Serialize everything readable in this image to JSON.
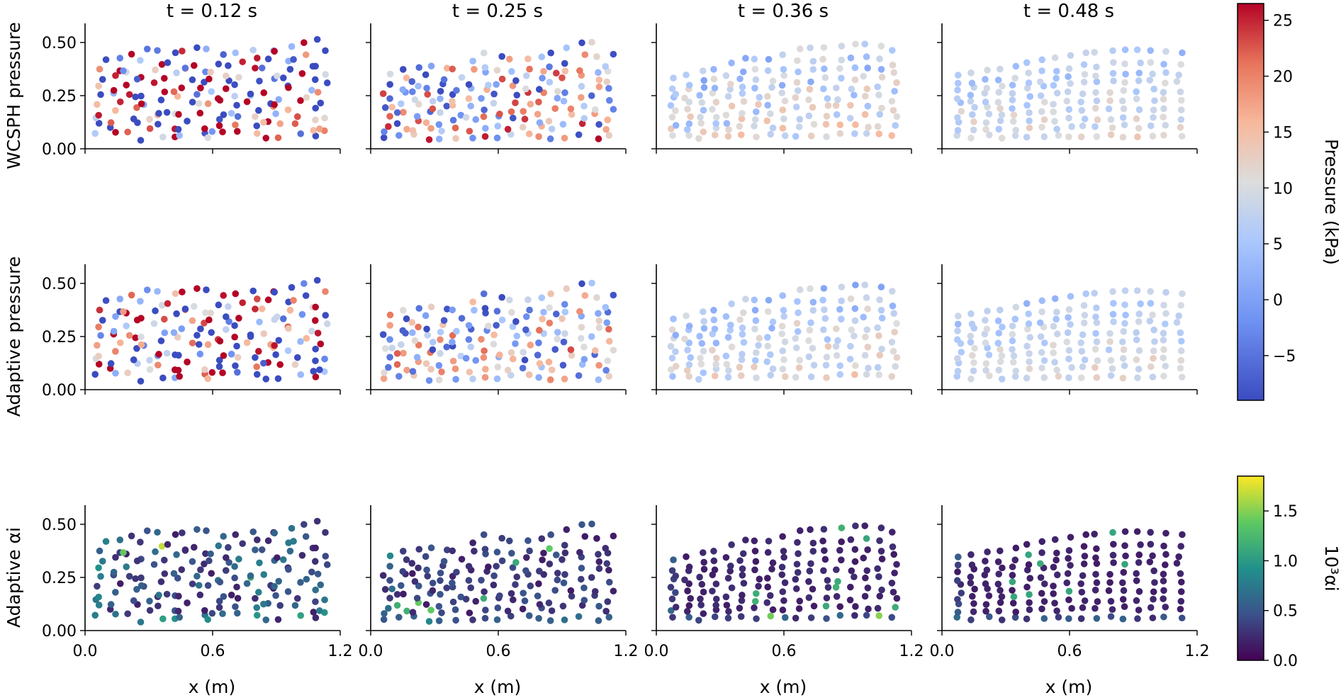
{
  "chart_data": {
    "type": "scatter",
    "column_titles": [
      "t = 0.12 s",
      "t = 0.25 s",
      "t = 0.36 s",
      "t = 0.48 s"
    ],
    "row_labels": [
      "WCSPH pressure",
      "Adaptive pressure",
      "Adaptive αi"
    ],
    "xlabel": "x (m)",
    "xlim": [
      0.0,
      1.2
    ],
    "ylim": [
      0.0,
      0.55
    ],
    "xticks": [
      "0.0",
      "0.6",
      "1.2"
    ],
    "yticks": [
      "0.00",
      "0.25",
      "0.50"
    ],
    "grid": false,
    "pressure_colorbar": {
      "label": "Pressure (kPa)",
      "colormap": "coolwarm",
      "range": [
        -9,
        26.5
      ],
      "ticks": [
        "25",
        "20",
        "15",
        "10",
        "5",
        "0",
        "−5"
      ],
      "colors": [
        "#3b4cc0",
        "#6f92f3",
        "#aac7fd",
        "#dcdddd",
        "#f7b89c",
        "#e7745b",
        "#b40426"
      ]
    },
    "alpha_colorbar": {
      "label": "10³αi",
      "colormap": "viridis",
      "range": [
        0.0,
        1.85
      ],
      "ticks": [
        "1.5",
        "1.0",
        "0.5",
        "0.0"
      ],
      "colors": [
        "#440154",
        "#3b528b",
        "#21918c",
        "#5ec962",
        "#fde725"
      ]
    },
    "free_surface_height": [
      [
        0.42,
        0.43,
        0.47,
        0.45,
        0.48,
        0.44,
        0.47,
        0.46,
        0.5,
        0.53
      ],
      [
        0.34,
        0.38,
        0.39,
        0.37,
        0.46,
        0.42,
        0.43,
        0.47,
        0.51,
        0.44
      ],
      [
        0.33,
        0.36,
        0.38,
        0.43,
        0.42,
        0.47,
        0.48,
        0.49,
        0.5,
        0.45
      ],
      [
        0.34,
        0.37,
        0.38,
        0.41,
        0.43,
        0.45,
        0.46,
        0.47,
        0.46,
        0.45
      ]
    ],
    "pressure_spread_by_time": [
      1.0,
      0.55,
      0.18,
      0.12
    ]
  }
}
